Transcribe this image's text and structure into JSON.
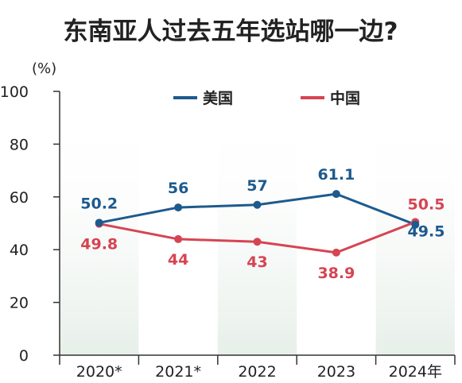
{
  "colors": {
    "us": "#1d5a8e",
    "china": "#d64452",
    "band": "#e7efe9",
    "axis": "#333333"
  },
  "chart_data": {
    "type": "line",
    "title": "东南亚人过去五年选站哪一边?",
    "ylabel": "(%)",
    "categories": [
      "2020*",
      "2021*",
      "2022",
      "2023",
      "2024年"
    ],
    "ylim": [
      0,
      100
    ],
    "yticks": [
      "0",
      "20",
      "40",
      "60",
      "80",
      "100"
    ],
    "legend_placement": "top-center",
    "series": [
      {
        "name": "美国",
        "values": [
          50.2,
          56,
          57,
          61.1,
          49.5
        ],
        "labels": [
          "50.2",
          "56",
          "57",
          "61.1",
          "49.5"
        ]
      },
      {
        "name": "中国",
        "values": [
          49.8,
          44,
          43,
          38.9,
          50.5
        ],
        "labels": [
          "49.8",
          "44",
          "43",
          "38.9",
          "50.5"
        ]
      }
    ]
  }
}
